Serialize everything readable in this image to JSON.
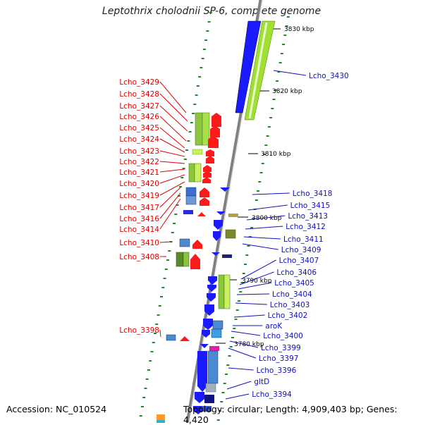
{
  "title": "Leptothrix cholodnii SP-6, complete genome",
  "accession": "Accession: NC_010524",
  "topology": "Topology: circular; Length: 4,909,403 bp; Genes: 4,420",
  "colors": {
    "left_label": "#e00000",
    "right_label": "#1010c0",
    "red_gene": "#ff1a1a",
    "blue_gene": "#1a1aff",
    "green_gene": "#8ad33a",
    "tick": "#228b22"
  },
  "kbp_marks": [
    "3830 kbp",
    "3820 kbp",
    "3810 kbp",
    "3800 kbp",
    "3790 kbp",
    "3780 kbp"
  ],
  "left_genes": [
    "Lcho_3429",
    "Lcho_3428",
    "Lcho_3427",
    "Lcho_3426",
    "Lcho_3425",
    "Lcho_3424",
    "Lcho_3423",
    "Lcho_3422",
    "Lcho_3421",
    "Lcho_3420",
    "Lcho_3419",
    "Lcho_3417",
    "Lcho_3416",
    "Lcho_3414",
    "Lcho_3410",
    "Lcho_3408",
    "Lcho_3398"
  ],
  "right_genes": [
    "Lcho_3430",
    "Lcho_3418",
    "Lcho_3415",
    "Lcho_3413",
    "Lcho_3412",
    "Lcho_3411",
    "Lcho_3409",
    "Lcho_3407",
    "Lcho_3406",
    "Lcho_3405",
    "Lcho_3404",
    "Lcho_3403",
    "Lcho_3402",
    "aroK",
    "Lcho_3400",
    "Lcho_3399",
    "Lcho_3397",
    "Lcho_3396",
    "gltD",
    "Lcho_3394"
  ]
}
